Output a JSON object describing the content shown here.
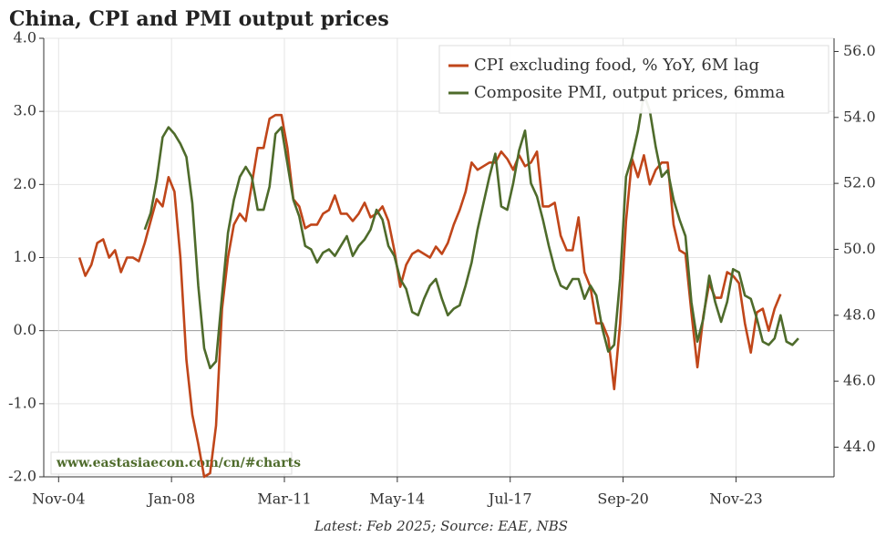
{
  "chart_data": {
    "type": "line",
    "title": "China, CPI and PMI output prices",
    "note": "Latest: Feb 2025; Source: EAE, NBS",
    "watermark": "www.eastasiaecon.com/cn/#charts",
    "x": [
      "2005-06",
      "2005-08",
      "2005-10",
      "2005-12",
      "2006-02",
      "2006-04",
      "2006-06",
      "2006-08",
      "2006-10",
      "2006-12",
      "2007-02",
      "2007-04",
      "2007-06",
      "2007-08",
      "2007-10",
      "2007-12",
      "2008-02",
      "2008-04",
      "2008-06",
      "2008-08",
      "2008-10",
      "2008-12",
      "2009-02",
      "2009-04",
      "2009-06",
      "2009-08",
      "2009-10",
      "2009-12",
      "2010-02",
      "2010-04",
      "2010-06",
      "2010-08",
      "2010-10",
      "2010-12",
      "2011-02",
      "2011-04",
      "2011-06",
      "2011-08",
      "2011-10",
      "2011-12",
      "2012-02",
      "2012-04",
      "2012-06",
      "2012-08",
      "2012-10",
      "2012-12",
      "2013-02",
      "2013-04",
      "2013-06",
      "2013-08",
      "2013-10",
      "2013-12",
      "2014-02",
      "2014-04",
      "2014-06",
      "2014-08",
      "2014-10",
      "2014-12",
      "2015-02",
      "2015-04",
      "2015-06",
      "2015-08",
      "2015-10",
      "2015-12",
      "2016-02",
      "2016-04",
      "2016-06",
      "2016-08",
      "2016-10",
      "2016-12",
      "2017-02",
      "2017-04",
      "2017-06",
      "2017-08",
      "2017-10",
      "2017-12",
      "2018-02",
      "2018-04",
      "2018-06",
      "2018-08",
      "2018-10",
      "2018-12",
      "2019-02",
      "2019-04",
      "2019-06",
      "2019-08",
      "2019-10",
      "2019-12",
      "2020-02",
      "2020-04",
      "2020-06",
      "2020-08",
      "2020-10",
      "2020-12",
      "2021-02",
      "2021-04",
      "2021-06",
      "2021-08",
      "2021-10",
      "2021-12",
      "2022-02",
      "2022-04",
      "2022-06",
      "2022-08",
      "2022-10",
      "2022-12",
      "2023-02",
      "2023-04",
      "2023-06",
      "2023-08",
      "2023-10",
      "2023-12",
      "2024-02",
      "2024-04",
      "2024-06",
      "2024-08",
      "2024-10",
      "2024-12",
      "2025-02",
      "2025-04",
      "2025-06",
      "2025-08"
    ],
    "series": [
      {
        "name": "CPI excluding food, % YoY, 6M lag",
        "color": "#c0461a",
        "axis": "y",
        "values": [
          1.0,
          0.75,
          0.9,
          1.2,
          1.25,
          1.0,
          1.1,
          0.8,
          1.0,
          1.0,
          0.95,
          1.2,
          1.5,
          1.8,
          1.7,
          2.1,
          1.9,
          1.0,
          -0.4,
          -1.15,
          -1.55,
          -2.0,
          -1.95,
          -1.3,
          0.3,
          1.0,
          1.45,
          1.6,
          1.5,
          2.0,
          2.5,
          2.5,
          2.9,
          2.95,
          2.95,
          2.5,
          1.8,
          1.7,
          1.4,
          1.45,
          1.45,
          1.6,
          1.65,
          1.85,
          1.6,
          1.6,
          1.5,
          1.6,
          1.75,
          1.55,
          1.6,
          1.7,
          1.5,
          1.1,
          0.6,
          0.9,
          1.05,
          1.1,
          1.05,
          1.0,
          1.15,
          1.05,
          1.2,
          1.45,
          1.65,
          1.9,
          2.3,
          2.2,
          2.25,
          2.3,
          2.3,
          2.45,
          2.35,
          2.2,
          2.4,
          2.25,
          2.3,
          2.45,
          1.7,
          1.7,
          1.75,
          1.3,
          1.1,
          1.1,
          1.55,
          0.8,
          0.6,
          0.1,
          0.1,
          -0.1,
          -0.8,
          0.1,
          1.5,
          2.35,
          2.1,
          2.4,
          2.0,
          2.2,
          2.3,
          2.3,
          1.45,
          1.1,
          1.05,
          0.25,
          -0.5,
          0.2,
          0.65,
          0.45,
          0.45,
          0.8,
          0.75,
          0.65,
          0.1,
          -0.3,
          0.25,
          0.3,
          0.0,
          0.3,
          0.5,
          null,
          null,
          null
        ]
      },
      {
        "name": "Composite PMI, output prices, 6mma",
        "color": "#4e6b2b",
        "axis": "y2",
        "values": [
          null,
          null,
          null,
          null,
          null,
          null,
          null,
          null,
          null,
          null,
          null,
          50.6,
          51.1,
          52.1,
          53.4,
          53.7,
          53.5,
          53.2,
          52.8,
          51.4,
          48.9,
          47.0,
          46.4,
          46.6,
          48.6,
          50.5,
          51.5,
          52.2,
          52.5,
          52.2,
          51.2,
          51.2,
          51.9,
          53.5,
          53.7,
          52.6,
          51.5,
          51.0,
          50.1,
          50.0,
          49.6,
          49.9,
          50.0,
          49.8,
          50.1,
          50.4,
          49.8,
          50.1,
          50.3,
          50.6,
          51.2,
          50.9,
          50.1,
          49.8,
          49.1,
          48.8,
          48.1,
          48.0,
          48.5,
          48.9,
          49.1,
          48.5,
          48.0,
          48.2,
          48.3,
          48.9,
          49.6,
          50.6,
          51.4,
          52.2,
          52.9,
          51.3,
          51.2,
          52.0,
          53.0,
          53.6,
          52.0,
          51.6,
          50.9,
          50.1,
          49.4,
          48.9,
          48.8,
          49.1,
          49.1,
          48.5,
          48.9,
          48.6,
          47.6,
          46.9,
          47.1,
          49.1,
          52.2,
          52.8,
          53.6,
          54.7,
          54.2,
          53.1,
          52.2,
          52.4,
          51.5,
          50.9,
          50.4,
          48.4,
          47.2,
          47.9,
          49.2,
          48.4,
          47.8,
          48.4,
          49.4,
          49.3,
          48.6,
          48.5,
          47.9,
          47.2,
          47.1,
          47.3,
          48.0,
          47.2,
          47.1,
          47.3
        ]
      }
    ],
    "xlim": [
      "2004-06",
      "2026-08"
    ],
    "xticks": [
      {
        "value": "2004-11",
        "label": "Nov-04"
      },
      {
        "value": "2008-01",
        "label": "Jan-08"
      },
      {
        "value": "2011-03",
        "label": "Mar-11"
      },
      {
        "value": "2014-05",
        "label": "May-14"
      },
      {
        "value": "2017-07",
        "label": "Jul-17"
      },
      {
        "value": "2020-09",
        "label": "Sep-20"
      },
      {
        "value": "2023-11",
        "label": "Nov-23"
      }
    ],
    "ylim": [
      -2,
      4
    ],
    "yticks": [
      {
        "value": -2,
        "label": "-2.0"
      },
      {
        "value": -1,
        "label": "-1.0"
      },
      {
        "value": 0,
        "label": "0.0"
      },
      {
        "value": 1,
        "label": "1.0"
      },
      {
        "value": 2,
        "label": "2.0"
      },
      {
        "value": 3,
        "label": "3.0"
      },
      {
        "value": 4,
        "label": "4.0"
      }
    ],
    "y2lim": [
      43.1,
      56.4
    ],
    "y2ticks": [
      {
        "value": 44,
        "label": "44.0"
      },
      {
        "value": 46,
        "label": "46.0"
      },
      {
        "value": 48,
        "label": "48.0"
      },
      {
        "value": 50,
        "label": "50.0"
      },
      {
        "value": 52,
        "label": "52.0"
      },
      {
        "value": 54,
        "label": "54.0"
      },
      {
        "value": 56,
        "label": "56.0"
      }
    ],
    "grid": true,
    "legend": "upper right"
  }
}
